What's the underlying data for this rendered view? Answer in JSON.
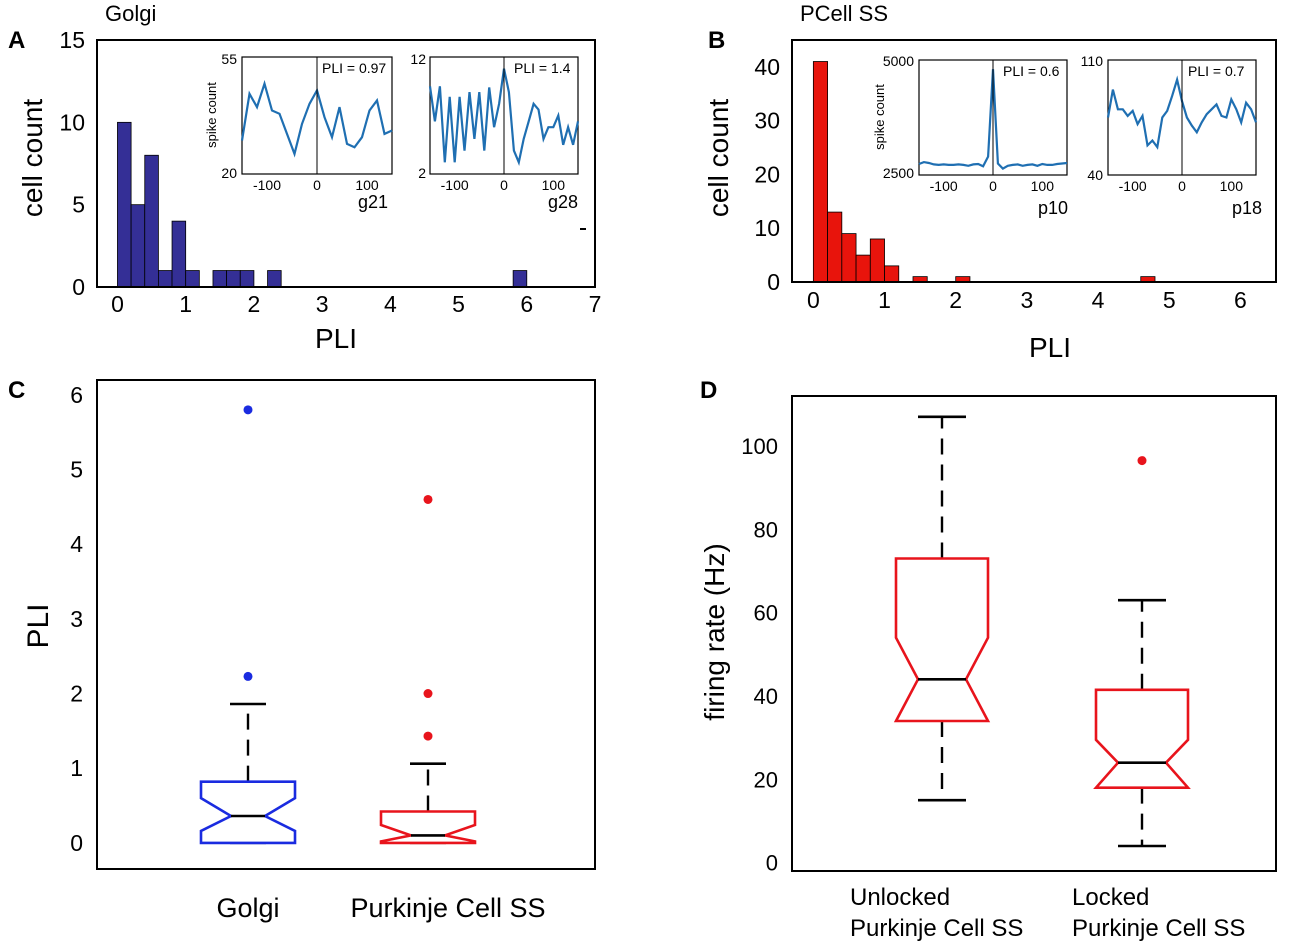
{
  "figure": {
    "colors": {
      "golgi": "#342f96",
      "pcell": "#e8140c",
      "inset": "#1f6fb2",
      "box_blue": "#1a2be0",
      "box_red": "#e8141c",
      "outlier_blue": "#1a2be0",
      "outlier_red": "#e8141c"
    }
  },
  "chart_data": [
    {
      "id": "A",
      "panel_label": "A",
      "type": "bar",
      "title": "Golgi",
      "xlabel": "PLI",
      "ylabel": "cell count",
      "xlim": [
        -0.3,
        7
      ],
      "ylim": [
        0,
        15
      ],
      "xticks": [
        0,
        1,
        2,
        3,
        4,
        5,
        6,
        7
      ],
      "yticks": [
        0,
        5,
        10,
        15
      ],
      "bin_width": 0.2,
      "bins": [
        {
          "x": 0.0,
          "count": 10
        },
        {
          "x": 0.2,
          "count": 5
        },
        {
          "x": 0.4,
          "count": 8
        },
        {
          "x": 0.6,
          "count": 1
        },
        {
          "x": 0.8,
          "count": 4
        },
        {
          "x": 1.0,
          "count": 1
        },
        {
          "x": 1.4,
          "count": 1
        },
        {
          "x": 1.6,
          "count": 1
        },
        {
          "x": 1.8,
          "count": 1
        },
        {
          "x": 2.2,
          "count": 1
        },
        {
          "x": 5.8,
          "count": 1
        }
      ],
      "insets": [
        {
          "id": "A1",
          "type": "line",
          "label": "g21",
          "annotation": "PLI = 0.97",
          "ylabel": "spike count",
          "xlim": [
            -150,
            150
          ],
          "ylim": [
            20,
            55
          ],
          "xticks": [
            -100,
            0,
            100
          ],
          "ytick_labels": [
            "55",
            "20"
          ],
          "x": [
            -150,
            -135,
            -120,
            -105,
            -90,
            -75,
            -60,
            -45,
            -30,
            -15,
            0,
            15,
            30,
            45,
            60,
            75,
            90,
            105,
            120,
            135,
            150
          ],
          "y": [
            30,
            44,
            40,
            47,
            39,
            38,
            32,
            26,
            35,
            41,
            45,
            37,
            31,
            40,
            29,
            28,
            31,
            39,
            42,
            32,
            33
          ]
        },
        {
          "id": "A2",
          "type": "line",
          "label": "g28",
          "annotation": "PLI = 1.4",
          "ylabel": "",
          "xlim": [
            -150,
            150
          ],
          "ylim": [
            2,
            12
          ],
          "xticks": [
            -100,
            0,
            100
          ],
          "ytick_labels": [
            "12",
            "2"
          ],
          "x": [
            -150,
            -140,
            -130,
            -120,
            -110,
            -100,
            -90,
            -80,
            -70,
            -60,
            -50,
            -40,
            -30,
            -20,
            -10,
            0,
            10,
            20,
            30,
            40,
            50,
            60,
            70,
            80,
            90,
            100,
            110,
            120,
            130,
            140,
            150
          ],
          "y": [
            9.5,
            6.5,
            9.5,
            3,
            8.6,
            3,
            8.6,
            4,
            9,
            5,
            9,
            4,
            9.4,
            6,
            8,
            11,
            9,
            4,
            3,
            5,
            6.5,
            8,
            7.5,
            5,
            6,
            6,
            7,
            4.5,
            6,
            4.5,
            6.5
          ]
        }
      ]
    },
    {
      "id": "B",
      "panel_label": "B",
      "type": "bar",
      "title": "PCell SS",
      "xlabel": "PLI",
      "ylabel": "cell count",
      "xlim": [
        -0.3,
        6.5
      ],
      "ylim": [
        0,
        45
      ],
      "xticks": [
        0,
        1,
        2,
        3,
        4,
        5,
        6
      ],
      "yticks": [
        0,
        10,
        20,
        30,
        40
      ],
      "bin_width": 0.2,
      "bins": [
        {
          "x": 0.0,
          "count": 41
        },
        {
          "x": 0.2,
          "count": 13
        },
        {
          "x": 0.4,
          "count": 9
        },
        {
          "x": 0.6,
          "count": 5
        },
        {
          "x": 0.8,
          "count": 8
        },
        {
          "x": 1.0,
          "count": 3
        },
        {
          "x": 1.4,
          "count": 1
        },
        {
          "x": 2.0,
          "count": 1
        },
        {
          "x": 4.6,
          "count": 1
        }
      ],
      "insets": [
        {
          "id": "B1",
          "type": "line",
          "label": "p10",
          "annotation": "PLI = 0.6",
          "ylabel": "spike count",
          "xlim": [
            -150,
            150
          ],
          "ylim": [
            2500,
            5000
          ],
          "xticks": [
            -100,
            0,
            100
          ],
          "ytick_labels": [
            "5000",
            "2500"
          ],
          "x": [
            -150,
            -140,
            -130,
            -120,
            -110,
            -100,
            -90,
            -80,
            -70,
            -60,
            -50,
            -40,
            -30,
            -20,
            -10,
            0,
            10,
            20,
            30,
            40,
            50,
            60,
            70,
            80,
            90,
            100,
            110,
            120,
            130,
            140,
            150
          ],
          "y": [
            2740,
            2780,
            2760,
            2730,
            2720,
            2730,
            2720,
            2720,
            2730,
            2720,
            2700,
            2730,
            2740,
            2690,
            2900,
            4800,
            2750,
            2640,
            2700,
            2720,
            2730,
            2700,
            2720,
            2730,
            2700,
            2740,
            2720,
            2720,
            2740,
            2750,
            2760
          ]
        },
        {
          "id": "B2",
          "type": "line",
          "label": "p18",
          "annotation": "PLI = 0.7",
          "ylabel": "",
          "xlim": [
            -150,
            150
          ],
          "ylim": [
            40,
            110
          ],
          "xticks": [
            -100,
            0,
            100
          ],
          "ytick_labels": [
            "110",
            "40"
          ],
          "x": [
            -150,
            -140,
            -130,
            -120,
            -110,
            -100,
            -90,
            -80,
            -70,
            -60,
            -50,
            -40,
            -30,
            -20,
            -10,
            0,
            10,
            20,
            30,
            40,
            50,
            60,
            70,
            80,
            90,
            100,
            110,
            120,
            130,
            140,
            150
          ],
          "y": [
            75,
            92,
            80,
            80,
            76,
            79,
            71,
            76,
            58,
            61,
            57,
            75,
            79,
            88,
            98,
            85,
            75,
            70,
            66,
            72,
            77,
            80,
            83,
            76,
            75,
            86,
            80,
            72,
            84,
            80,
            72
          ]
        }
      ]
    },
    {
      "id": "C",
      "panel_label": "C",
      "type": "box",
      "ylabel": "PLI",
      "ylim": [
        -0.35,
        6.2
      ],
      "yticks": [
        0,
        1,
        2,
        3,
        4,
        5,
        6
      ],
      "categories": [
        "Golgi",
        "Purkinje Cell SS"
      ],
      "boxes": [
        {
          "label": "Golgi",
          "color": "blue",
          "whisker_low": 0.0,
          "q1": 0.0,
          "median": 0.36,
          "q3": 0.82,
          "whisker_high": 1.86,
          "notch_low": 0.16,
          "notch_high": 0.6,
          "outliers": [
            2.23,
            5.8
          ]
        },
        {
          "label": "Purkinje Cell SS",
          "color": "red",
          "whisker_low": 0.0,
          "q1": 0.0,
          "median": 0.1,
          "q3": 0.42,
          "whisker_high": 1.06,
          "notch_low": 0.02,
          "notch_high": 0.24,
          "outliers": [
            1.43,
            2.0,
            4.6
          ]
        }
      ]
    },
    {
      "id": "D",
      "panel_label": "D",
      "type": "box",
      "ylabel": "firing rate (Hz)",
      "ylim": [
        -2,
        112
      ],
      "yticks": [
        0,
        20,
        40,
        60,
        80,
        100
      ],
      "categories": [
        "Unlocked Purkinje Cell SS",
        "Locked Purkinje Cell SS"
      ],
      "category_lines": [
        [
          "Unlocked",
          "Purkinje Cell SS"
        ],
        [
          "Locked",
          "Purkinje Cell SS"
        ]
      ],
      "boxes": [
        {
          "label": "Unlocked Purkinje Cell SS",
          "color": "red",
          "whisker_low": 15,
          "q1": 34,
          "median": 44,
          "q3": 73,
          "whisker_high": 107,
          "notch_low": 34,
          "notch_high": 54,
          "outliers": []
        },
        {
          "label": "Locked Purkinje Cell SS",
          "color": "red",
          "whisker_low": 4,
          "q1": 18,
          "median": 24,
          "q3": 41.5,
          "whisker_high": 63,
          "notch_low": 18,
          "notch_high": 29.5,
          "outliers": [
            96.5
          ]
        }
      ]
    }
  ]
}
